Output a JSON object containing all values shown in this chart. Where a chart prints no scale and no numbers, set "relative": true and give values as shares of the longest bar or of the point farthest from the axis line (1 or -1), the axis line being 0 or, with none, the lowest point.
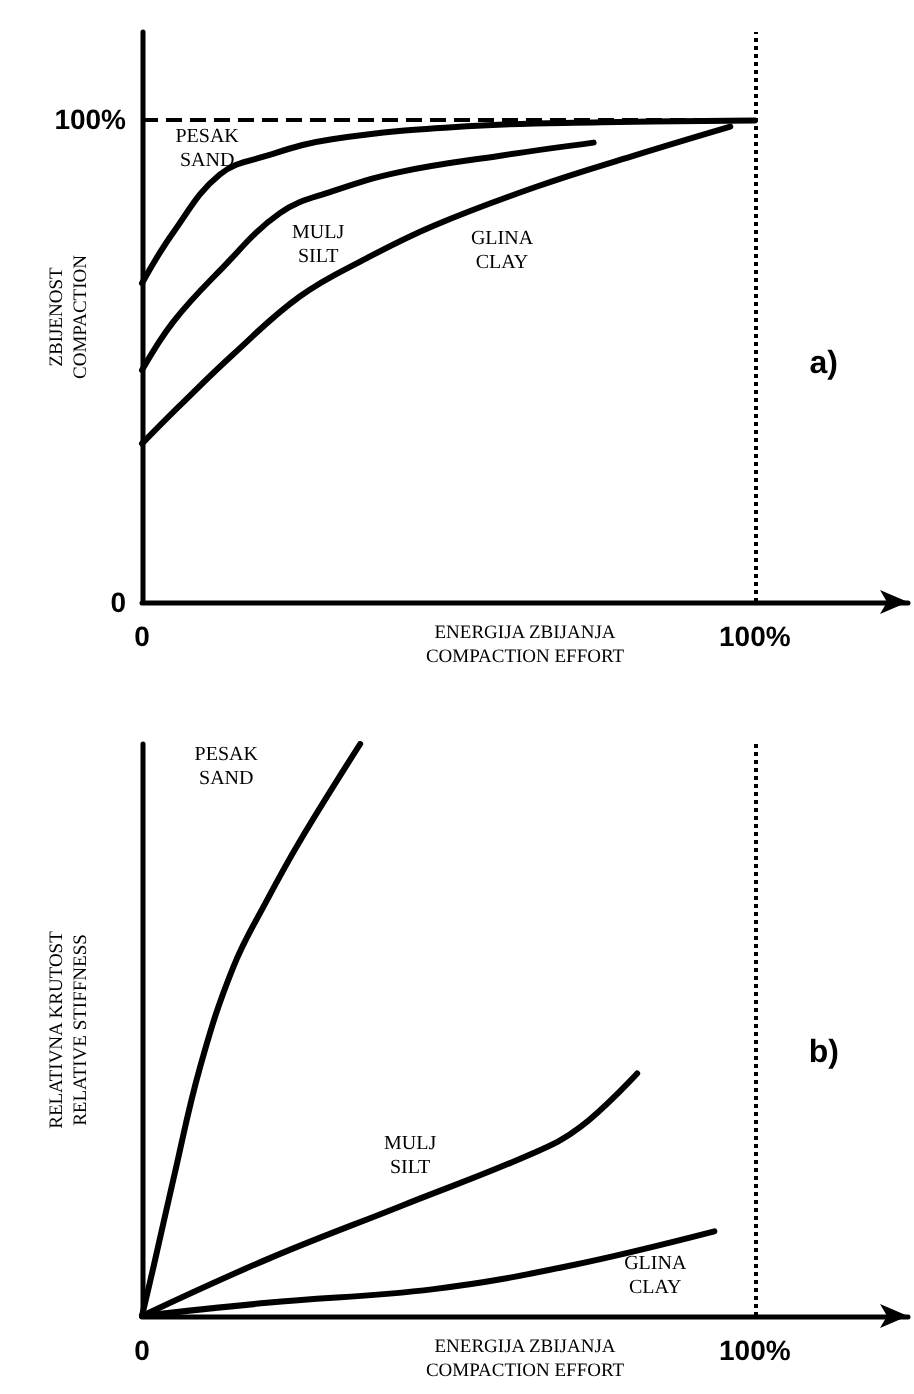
{
  "chart_data": [
    {
      "type": "line",
      "xlabel": "ENERGIJA ZBIJANJA\nCOMPACTION EFFORT",
      "ylabel": "ZBIJENOST\nCOMPACTION",
      "x": [
        0,
        5.1,
        12.7,
        20.4,
        31,
        53,
        75,
        100
      ],
      "series": [
        {
          "color": "#000000",
          "values": [
            66,
            76.5,
            88.5,
            92.4,
            95.8,
            98.5,
            99.3,
            99.7
          ]
        },
        {
          "color": "#000000",
          "x": [
            0,
            5.1,
            12.7,
            22.5,
            31,
            42,
            58.5,
            73.7
          ],
          "values": [
            48,
            58,
            68.6,
            80.5,
            85,
            89,
            92.4,
            95.1
          ]
        },
        {
          "color": "#000000",
          "x": [
            0,
            6.2,
            14.9,
            25.8,
            36.7,
            47.6,
            64,
            80.3,
            96
          ],
          "values": [
            32.8,
            40.7,
            51.3,
            63.3,
            71.2,
            77.9,
            85.8,
            92.4,
            98.4
          ]
        }
      ],
      "xlim": [
        0,
        125
      ],
      "ylim": [
        0,
        118
      ],
      "xticks": [
        0,
        {
          "value": 100,
          "label": "100%"
        }
      ],
      "yticks": [
        0,
        {
          "value": 100,
          "label": "100%"
        }
      ],
      "ref_lines": [
        {
          "axis": "y",
          "value": 100,
          "line_style": "dashed"
        },
        {
          "axis": "x",
          "value": 100,
          "line_style": "dotted"
        }
      ],
      "annotations": [
        "PESAK\nSAND",
        "MULJ\nSILT",
        "GLINA\nCLAY",
        "a)"
      ],
      "grid": false,
      "marker": "none",
      "line_style": "solid"
    },
    {
      "type": "line",
      "xlabel": "ENERGIJA ZBIJANJA\nCOMPACTION EFFORT",
      "ylabel": "RELATIVNA KRUTOST\nRELATIVE STIFFNESS",
      "relative": true,
      "x": [
        0,
        1.9,
        5.1,
        9.5,
        14.9,
        20.4,
        25.8,
        35.6
      ],
      "series": [
        {
          "color": "#000000",
          "values": [
            0,
            0.087,
            0.238,
            0.436,
            0.61,
            0.727,
            0.831,
            1
          ]
        },
        {
          "color": "#000000",
          "x": [
            0,
            20.4,
            42.2,
            63.9,
            71.6,
            80.8
          ],
          "values": [
            0,
            0.099,
            0.192,
            0.285,
            0.331,
            0.424
          ]
        },
        {
          "color": "#000000",
          "x": [
            0,
            20.4,
            47.6,
            69.4,
            93.4
          ],
          "values": [
            0,
            0.023,
            0.047,
            0.087,
            0.148
          ]
        }
      ],
      "xlim": [
        0,
        125
      ],
      "xticks": [
        0,
        {
          "value": 100,
          "label": "100%"
        }
      ],
      "ref_lines": [
        {
          "axis": "x",
          "value": 100,
          "line_style": "dotted"
        }
      ],
      "annotations": [
        "PESAK\nSAND",
        "MULJ\nSILT",
        "GLINA\nCLAY",
        "b)"
      ],
      "grid": false,
      "marker": "none",
      "line_style": "solid"
    }
  ]
}
